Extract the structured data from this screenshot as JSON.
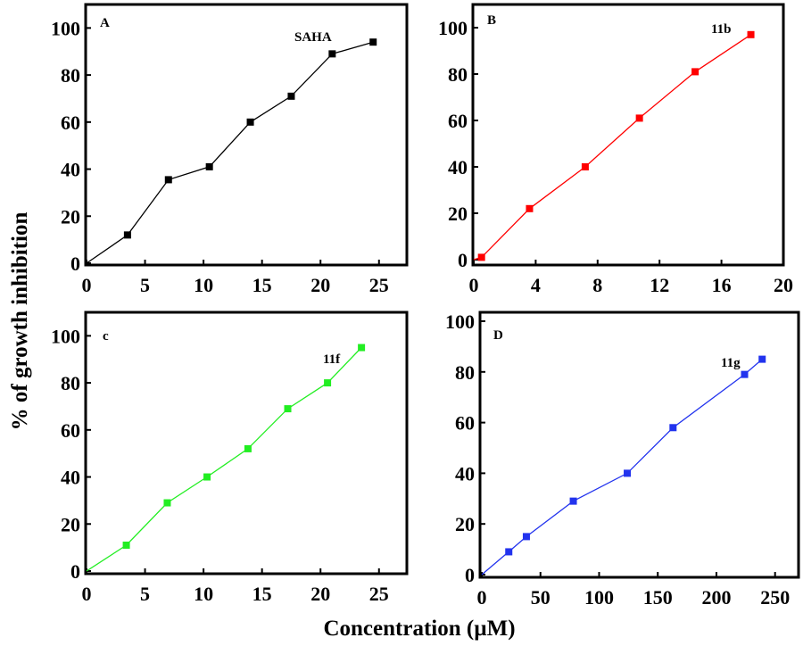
{
  "figure": {
    "ylabel": "% of growth inhibition",
    "xlabel": "Concentration (µM)"
  },
  "chart_data": [
    {
      "type": "line",
      "panel": "A",
      "series_name": "SAHA",
      "color": "#000000",
      "x": [
        0,
        3.5,
        7,
        10.5,
        14,
        17.5,
        21,
        24.5
      ],
      "y": [
        0,
        12,
        35.5,
        41,
        60,
        71,
        89,
        94
      ],
      "xlim": [
        0,
        27
      ],
      "ylim": [
        0,
        110
      ],
      "xticks": [
        0,
        5,
        10,
        15,
        20,
        25
      ],
      "yticks": [
        0,
        20,
        40,
        60,
        80,
        100
      ]
    },
    {
      "type": "line",
      "panel": "B",
      "series_name": "11b",
      "color": "#ff0000",
      "x": [
        0,
        0.5,
        3.6,
        7.2,
        10.7,
        14.3,
        17.9
      ],
      "y": [
        0,
        1,
        22,
        40,
        61,
        81,
        97
      ],
      "xlim": [
        0,
        20
      ],
      "ylim": [
        0,
        110
      ],
      "xticks": [
        0,
        4,
        8,
        12,
        16,
        20
      ],
      "yticks": [
        0,
        20,
        40,
        60,
        80,
        100
      ]
    },
    {
      "type": "line",
      "panel": "c",
      "series_name": "11f",
      "color": "#22ee22",
      "x": [
        0,
        3.4,
        6.9,
        10.3,
        13.8,
        17.2,
        20.6,
        23.5
      ],
      "y": [
        0,
        11,
        29,
        40,
        52,
        69,
        80,
        95
      ],
      "xlim": [
        0,
        27
      ],
      "ylim": [
        0,
        110
      ],
      "xticks": [
        0,
        5,
        10,
        15,
        20,
        25
      ],
      "yticks": [
        0,
        20,
        40,
        60,
        80,
        100
      ]
    },
    {
      "type": "line",
      "panel": "D",
      "series_name": "11g",
      "color": "#2233ee",
      "x": [
        0,
        23,
        38,
        78,
        124,
        163,
        224,
        239
      ],
      "y": [
        0,
        9,
        15,
        29,
        40,
        58,
        79,
        85
      ],
      "xlim": [
        0,
        270
      ],
      "ylim": [
        0,
        100
      ],
      "xticks": [
        0,
        50,
        100,
        150,
        200,
        250
      ],
      "yticks": [
        0,
        20,
        40,
        60,
        80,
        100
      ]
    }
  ]
}
